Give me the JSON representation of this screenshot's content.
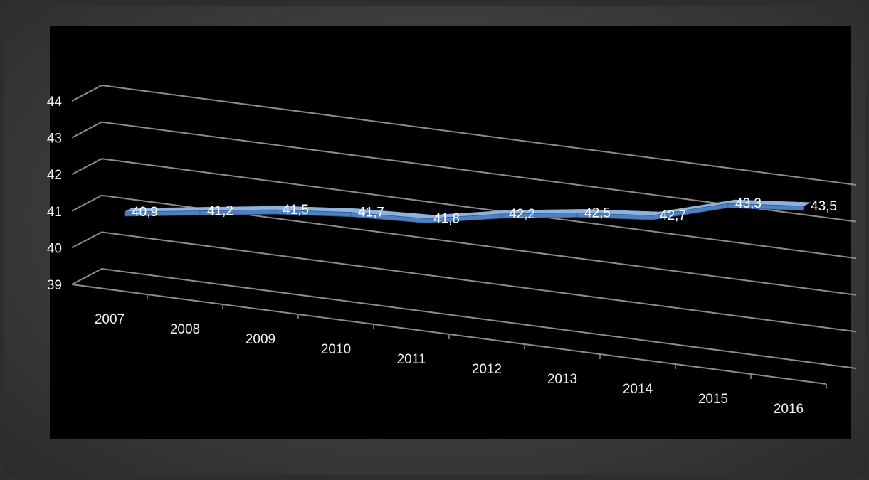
{
  "chart_data": {
    "type": "line",
    "style": "3d-line",
    "categories": [
      "2007",
      "2008",
      "2009",
      "2010",
      "2011",
      "2012",
      "2013",
      "2014",
      "2015",
      "2016"
    ],
    "series": [
      {
        "values": [
          40.9,
          41.2,
          41.5,
          41.7,
          41.8,
          42.2,
          42.5,
          42.7,
          43.3,
          43.5
        ]
      }
    ],
    "data_labels": [
      "40,9",
      "41,2",
      "41,5",
      "41,7",
      "41,8",
      "42,2",
      "42,5",
      "42,7",
      "43,3",
      "43,5"
    ],
    "y_ticks": [
      "39",
      "40",
      "41",
      "42",
      "43",
      "44"
    ],
    "ylim": [
      39,
      44
    ],
    "grid": true,
    "legend": "none",
    "colors": {
      "line": "#4f81bd",
      "line_top": "#8db3e2",
      "line_side": "#2c5a94",
      "grid": "#8c8c8c",
      "text": "#f2f2f2",
      "plot_background": "#000000"
    }
  }
}
